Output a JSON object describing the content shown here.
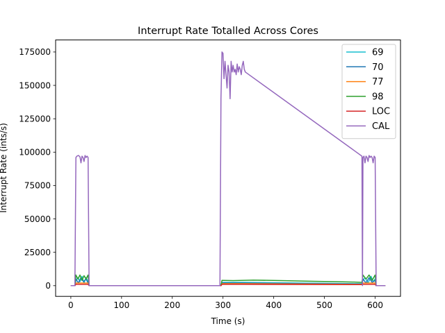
{
  "chart_data": {
    "type": "line",
    "title": "Interrupt Rate Totalled Across Cores",
    "xlabel": "Time (s)",
    "ylabel": "Interrupt Rate (ints/s)",
    "xlim": [
      -30,
      650
    ],
    "ylim": [
      -8000,
      184000
    ],
    "xticks": [
      0,
      100,
      200,
      300,
      400,
      500,
      600
    ],
    "yticks": [
      0,
      25000,
      50000,
      75000,
      100000,
      125000,
      150000,
      175000
    ],
    "xtick_labels": [
      "0",
      "100",
      "200",
      "300",
      "400",
      "500",
      "600"
    ],
    "ytick_labels": [
      "0",
      "25000",
      "50000",
      "75000",
      "100000",
      "125000",
      "150000",
      "175000"
    ],
    "legend_position": "upper right",
    "grid": false,
    "series": [
      {
        "name": "69",
        "color": "#17becf",
        "x": [
          0,
          8,
          10,
          14,
          18,
          22,
          26,
          30,
          34,
          36,
          296,
          298,
          340,
          560,
          574,
          576,
          580,
          586,
          592,
          596,
          600,
          602,
          620
        ],
        "y": [
          0,
          0,
          4000,
          6000,
          3000,
          7000,
          2000,
          6000,
          3000,
          0,
          0,
          2500,
          2500,
          1500,
          1500,
          4000,
          6000,
          2000,
          7000,
          3000,
          5000,
          0,
          0
        ]
      },
      {
        "name": "70",
        "color": "#1f77b4",
        "x": [
          0,
          8,
          10,
          15,
          20,
          25,
          30,
          34,
          36,
          296,
          298,
          340,
          560,
          574,
          576,
          582,
          588,
          594,
          600,
          602,
          620
        ],
        "y": [
          0,
          0,
          5000,
          2000,
          6000,
          3000,
          5000,
          2000,
          0,
          0,
          2000,
          2000,
          1200,
          1200,
          5000,
          2000,
          6000,
          2500,
          4000,
          0,
          0
        ]
      },
      {
        "name": "77",
        "color": "#ff7f0e",
        "x": [
          0,
          8,
          10,
          34,
          36,
          296,
          298,
          340,
          560,
          574,
          576,
          600,
          602,
          620
        ],
        "y": [
          0,
          0,
          2000,
          2000,
          0,
          0,
          1500,
          1500,
          1000,
          1000,
          2000,
          2000,
          0,
          0
        ]
      },
      {
        "name": "98",
        "color": "#2ca02c",
        "x": [
          0,
          8,
          10,
          14,
          18,
          22,
          26,
          30,
          34,
          36,
          296,
          298,
          320,
          360,
          400,
          440,
          480,
          520,
          560,
          574,
          576,
          582,
          588,
          594,
          600,
          602,
          620
        ],
        "y": [
          0,
          0,
          8000,
          5000,
          8000,
          4000,
          7500,
          5000,
          8000,
          0,
          0,
          4000,
          3800,
          4200,
          3900,
          3600,
          3300,
          3000,
          2700,
          2500,
          8000,
          5000,
          8000,
          4000,
          8000,
          0,
          0
        ]
      },
      {
        "name": "LOC",
        "color": "#d62728",
        "x": [
          0,
          8,
          10,
          34,
          36,
          296,
          298,
          340,
          560,
          574,
          576,
          600,
          602,
          620
        ],
        "y": [
          0,
          0,
          1000,
          1000,
          0,
          0,
          1000,
          1000,
          800,
          800,
          1000,
          1000,
          0,
          0
        ]
      },
      {
        "name": "CAL",
        "color": "#9467bd",
        "x": [
          0,
          5,
          8,
          10,
          12,
          15,
          18,
          20,
          22,
          24,
          26,
          28,
          30,
          32,
          34,
          36,
          100,
          200,
          294,
          296,
          298,
          300,
          302,
          304,
          306,
          308,
          310,
          312,
          314,
          316,
          318,
          320,
          322,
          324,
          326,
          328,
          330,
          332,
          334,
          336,
          338,
          340,
          342,
          344,
          574,
          575,
          576,
          578,
          580,
          582,
          584,
          586,
          588,
          590,
          592,
          594,
          596,
          598,
          600,
          602,
          620
        ],
        "y": [
          0,
          0,
          0,
          96000,
          97000,
          97500,
          96500,
          92000,
          97000,
          96000,
          93000,
          97500,
          96000,
          97000,
          96000,
          0,
          0,
          0,
          0,
          140000,
          175000,
          174000,
          155000,
          168000,
          158000,
          148000,
          165000,
          160000,
          140000,
          168000,
          160000,
          165000,
          160000,
          162000,
          158000,
          166000,
          160000,
          164000,
          162000,
          158000,
          165000,
          168000,
          162000,
          160000,
          97000,
          0,
          96000,
          97000,
          92000,
          97000,
          96000,
          93000,
          97500,
          96000,
          97000,
          96000,
          92000,
          97000,
          96000,
          0,
          0
        ]
      }
    ]
  }
}
